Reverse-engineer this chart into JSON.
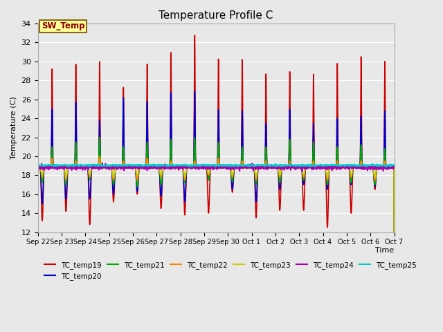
{
  "title": "Temperature Profile C",
  "xlabel": "Time",
  "ylabel": "Temperature (C)",
  "ylim": [
    12,
    34
  ],
  "yticks": [
    12,
    14,
    16,
    18,
    20,
    22,
    24,
    26,
    28,
    30,
    32,
    34
  ],
  "background_color": "#e8e8e8",
  "plot_bg_color": "#e8e8e8",
  "sw_temp_label": "SW_Temp",
  "series": [
    {
      "name": "TC_temp19",
      "color": "#cc0000",
      "lw": 1.2
    },
    {
      "name": "TC_temp20",
      "color": "#0000cc",
      "lw": 1.2
    },
    {
      "name": "TC_temp21",
      "color": "#00aa00",
      "lw": 1.2
    },
    {
      "name": "TC_temp22",
      "color": "#ff8800",
      "lw": 1.2
    },
    {
      "name": "TC_temp23",
      "color": "#cccc00",
      "lw": 1.2
    },
    {
      "name": "TC_temp24",
      "color": "#aa00aa",
      "lw": 1.2
    },
    {
      "name": "TC_temp25",
      "color": "#00cccc",
      "lw": 1.2
    }
  ],
  "xtick_labels": [
    "Sep 22",
    "Sep 23",
    "Sep 24",
    "Sep 25",
    "Sep 26",
    "Sep 27",
    "Sep 28",
    "Sep 29",
    "Sep 30",
    "Oct 1",
    "Oct 2",
    "Oct 3",
    "Oct 4",
    "Oct 5",
    "Oct 6",
    "Oct 7"
  ],
  "n_days": 15,
  "points_per_day": 144
}
